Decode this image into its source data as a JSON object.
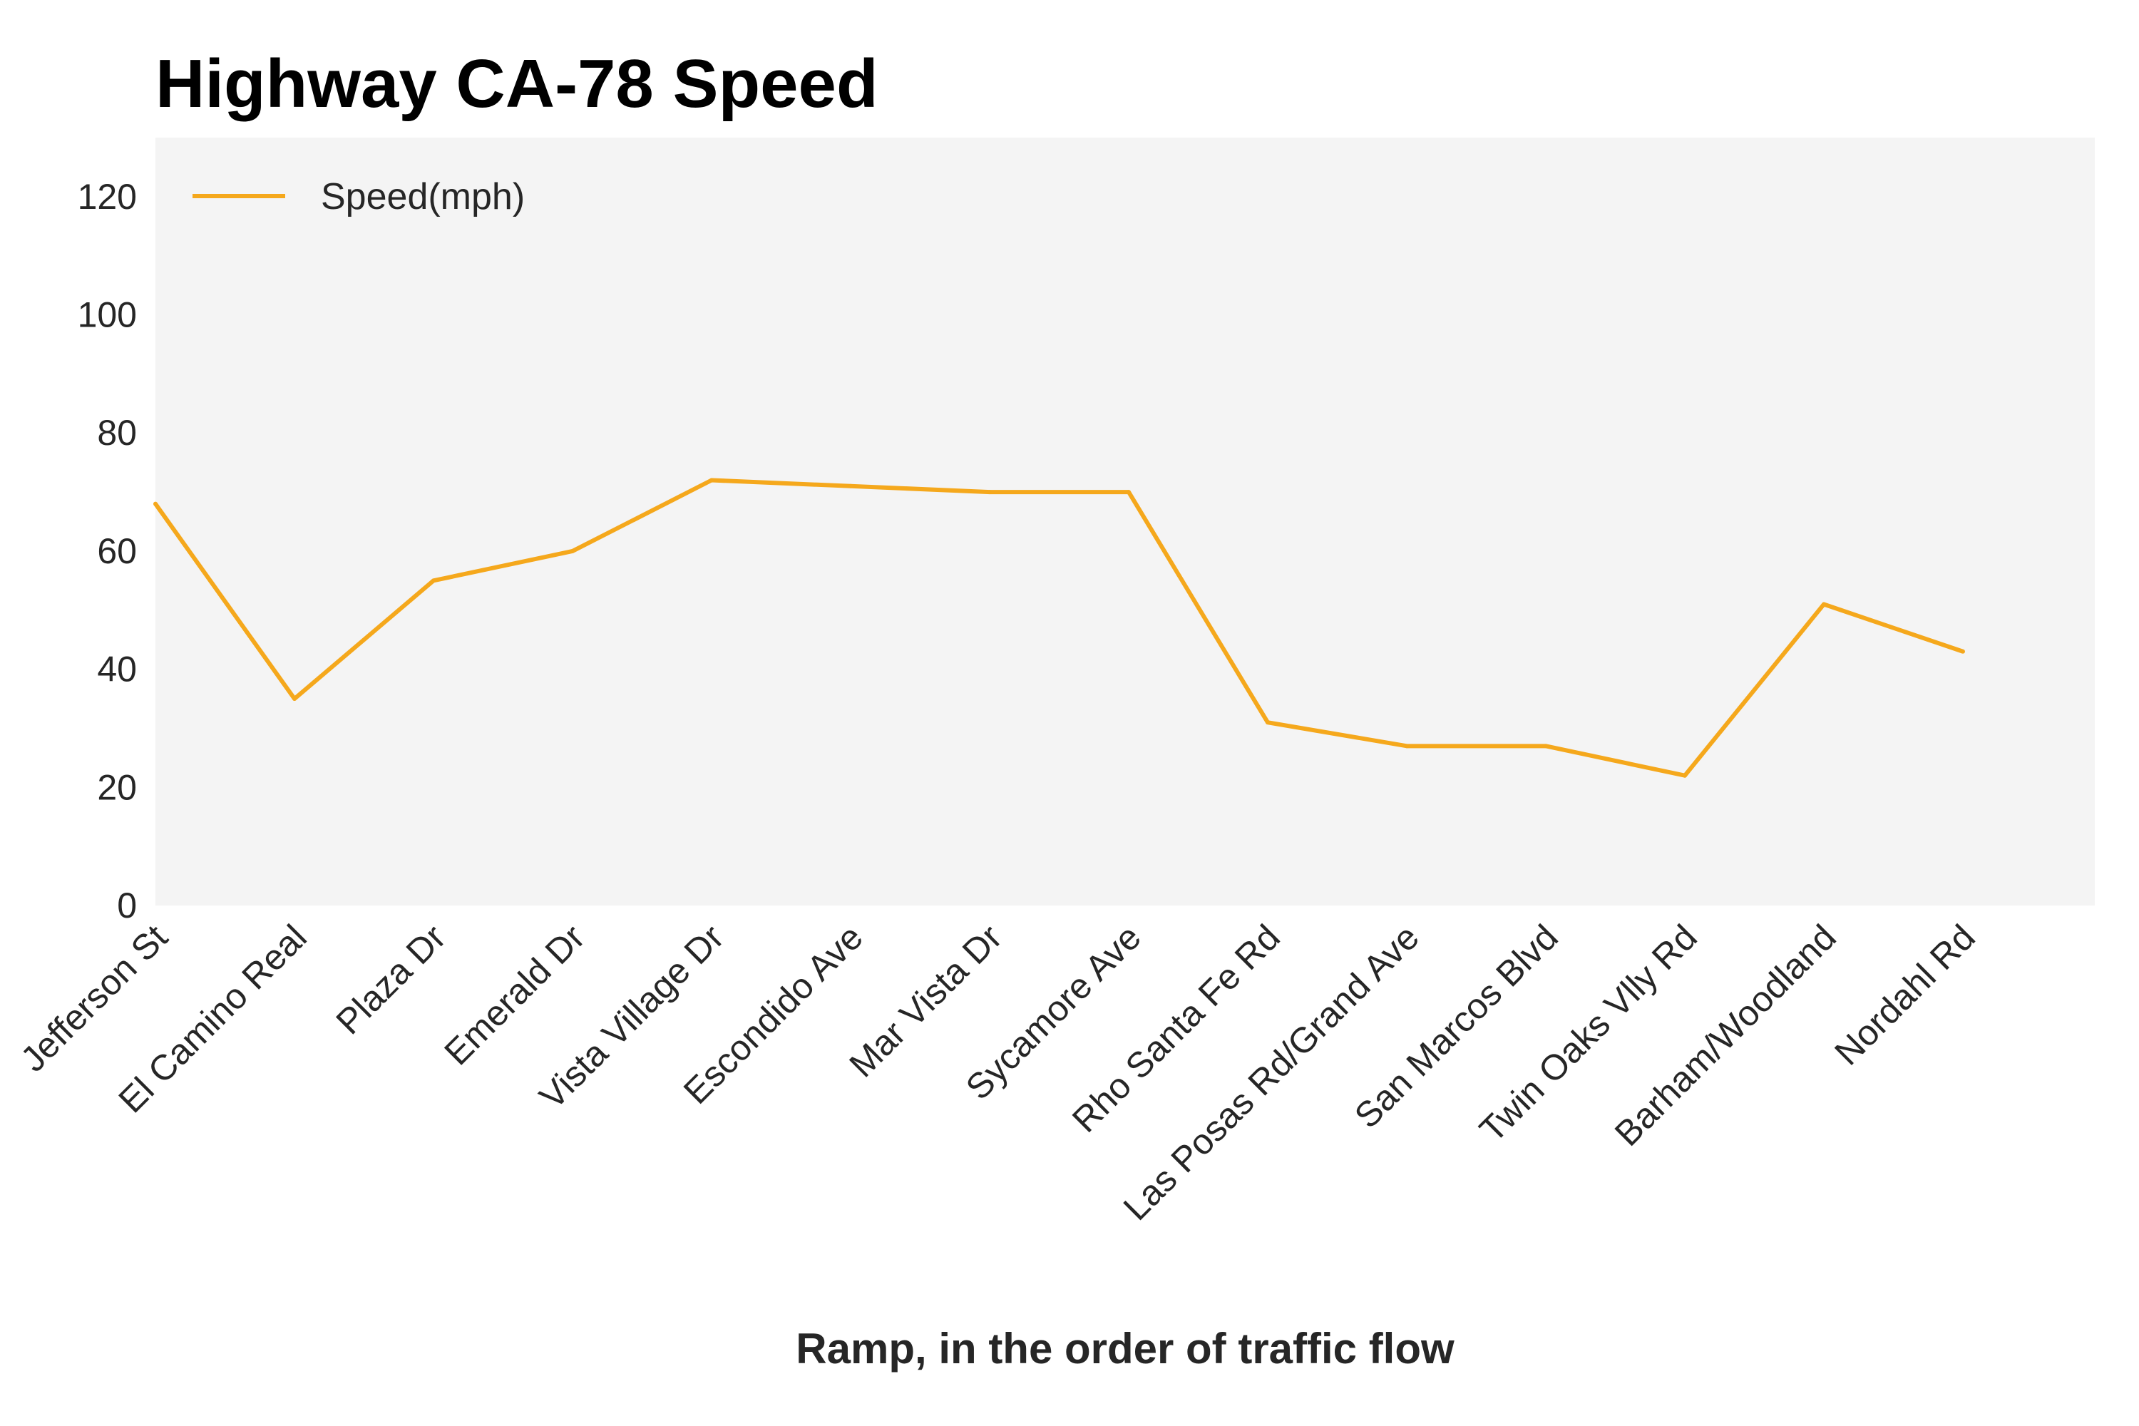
{
  "chart_data": {
    "type": "line",
    "title": "Highway CA-78 Speed",
    "xlabel": "Ramp, in the order of traffic flow",
    "ylabel": "",
    "ylim": [
      0,
      130
    ],
    "yticks": [
      0,
      20,
      40,
      60,
      80,
      100,
      120
    ],
    "grid": false,
    "legend_position": "top-left",
    "colors": {
      "line": "#f5a81c",
      "plot_background": "#f4f4f4"
    },
    "categories": [
      "Jefferson St",
      "El Camino Real",
      "Plaza Dr",
      "Emerald Dr",
      "Vista Village Dr",
      "Escondido Ave",
      "Mar Vista Dr",
      "Sycamore Ave",
      "Rho Santa Fe Rd",
      "Las Posas Rd/Grand Ave",
      "San Marcos Blvd",
      "Twin Oaks Vlly Rd",
      "Barham/Woodland",
      "Nordahl Rd"
    ],
    "series": [
      {
        "name": "Speed(mph)",
        "values": [
          68,
          35,
          55,
          60,
          72,
          71,
          70,
          70,
          31,
          27,
          27,
          22,
          51,
          43
        ]
      }
    ]
  }
}
